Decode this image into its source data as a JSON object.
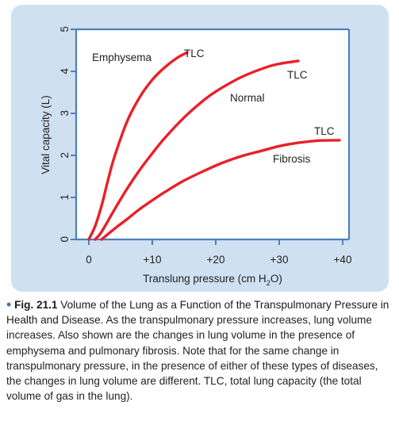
{
  "chart_data": {
    "type": "line",
    "title": "",
    "xlabel_main": "Translung pressure (cm H",
    "xlabel_sub": "2",
    "xlabel_end": "O)",
    "ylabel": "Vital capacity (L)",
    "xlim": [
      -2,
      41
    ],
    "ylim": [
      0,
      5
    ],
    "x_ticks": [
      0,
      10,
      20,
      30,
      40
    ],
    "x_tick_labels": [
      "0",
      "+10",
      "+20",
      "+30",
      "+40"
    ],
    "y_ticks": [
      0,
      1,
      2,
      3,
      4,
      5
    ],
    "y_tick_labels": [
      "0",
      "1",
      "2",
      "3",
      "4",
      "5"
    ],
    "grid": false,
    "series": [
      {
        "name": "Emphysema",
        "x": [
          0,
          1,
          2,
          3,
          4,
          6,
          8,
          10,
          12,
          14,
          15.5
        ],
        "y": [
          0,
          0.32,
          0.8,
          1.4,
          1.95,
          2.8,
          3.38,
          3.8,
          4.1,
          4.33,
          4.45
        ]
      },
      {
        "name": "Normal",
        "x": [
          1,
          2,
          4,
          6,
          8,
          10,
          12,
          15,
          18,
          20,
          24,
          28,
          30,
          33
        ],
        "y": [
          0,
          0.18,
          0.7,
          1.2,
          1.65,
          2.05,
          2.42,
          2.9,
          3.3,
          3.52,
          3.86,
          4.1,
          4.18,
          4.25
        ]
      },
      {
        "name": "Fibrosis",
        "x": [
          2,
          4,
          6,
          8,
          10,
          12,
          15,
          18,
          21,
          24,
          27,
          30,
          33,
          36,
          39.5
        ],
        "y": [
          0,
          0.25,
          0.48,
          0.72,
          0.93,
          1.13,
          1.4,
          1.62,
          1.82,
          1.98,
          2.1,
          2.22,
          2.3,
          2.35,
          2.36
        ]
      }
    ],
    "annotations": {
      "emphysema_label": "Emphysema",
      "emphysema_tlc": "TLC",
      "normal_label": "Normal",
      "normal_tlc": "TLC",
      "fibrosis_label": "Fibrosis",
      "fibrosis_tlc": "TLC"
    },
    "colors": {
      "background": "#cfe0f1",
      "frame": "#4e7fbd",
      "curve": "#e8202a"
    }
  },
  "caption": {
    "bullet": "•",
    "fig_number": "Fig. 21.1",
    "fig_title": "Volume of the Lung as a Function of the Transpulmonary Pressure in Health and Disease.",
    "body": "As the transpulmonary pressure increases, lung volume increases. Also shown are the changes in lung volume in the presence of emphysema and pulmonary fibrosis. Note that for the same change in transpulmonary pressure, in the presence of either of these types of diseases, the changes in lung volume are different. TLC, total lung capacity (the total volume of gas in the lung)."
  }
}
